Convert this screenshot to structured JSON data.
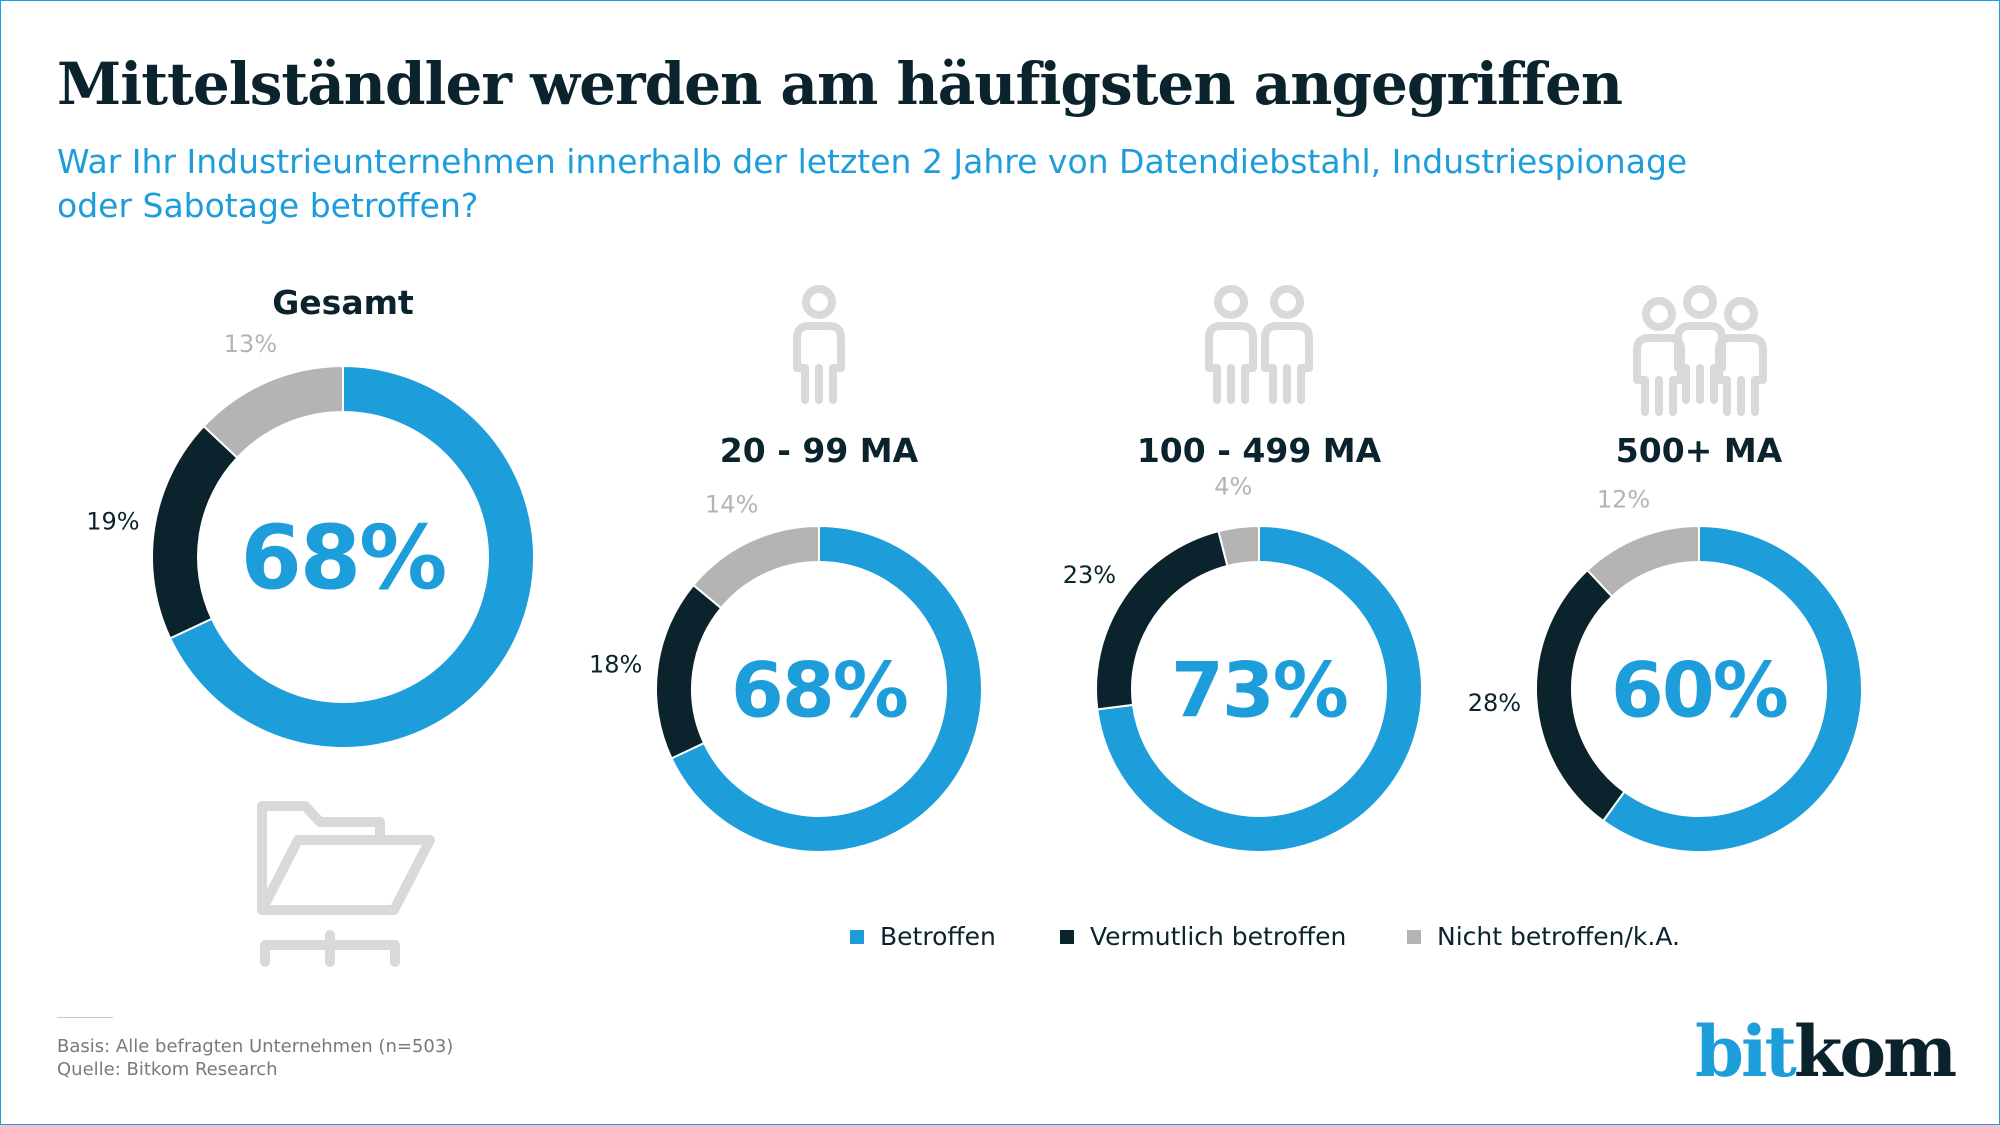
{
  "header": {
    "title": "Mittelständler werden am häufigsten angegriffen",
    "subtitle": "War Ihr Industrieunternehmen innerhalb der letzten 2 Jahre von Datendiebstahl, Industriespionage oder Sabotage betroffen?"
  },
  "colors": {
    "betroffen": "#1e9ddb",
    "vermutlich": "#0a232d",
    "nicht": "#b4b4b4",
    "icon": "#d9d9d9"
  },
  "chart_data": {
    "type": "donut",
    "legend": [
      "Betroffen",
      "Vermutlich betroffen",
      "Nicht betroffen/k.A."
    ],
    "legend_position": "bottom",
    "charts": [
      {
        "label": "Gesamt",
        "icon": "folder-icon",
        "center": "68%",
        "values": [
          68,
          19,
          13
        ],
        "labels": [
          "",
          "19%",
          "13%"
        ]
      },
      {
        "label": "20 - 99 MA",
        "icon": "person-icon",
        "center": "68%",
        "values": [
          68,
          18,
          14
        ],
        "labels": [
          "",
          "18%",
          "14%"
        ]
      },
      {
        "label": "100 - 499 MA",
        "icon": "two-people-icon",
        "center": "73%",
        "values": [
          73,
          23,
          4
        ],
        "labels": [
          "",
          "23%",
          "4%"
        ]
      },
      {
        "label": "500+ MA",
        "icon": "three-people-icon",
        "center": "60%",
        "values": [
          60,
          28,
          12
        ],
        "labels": [
          "",
          "28%",
          "12%"
        ]
      }
    ]
  },
  "footer": {
    "basis": "Basis: Alle befragten Unternehmen (n=503)",
    "source": "Quelle: Bitkom Research"
  },
  "logo": {
    "part1": "bit",
    "part2": "kom"
  }
}
